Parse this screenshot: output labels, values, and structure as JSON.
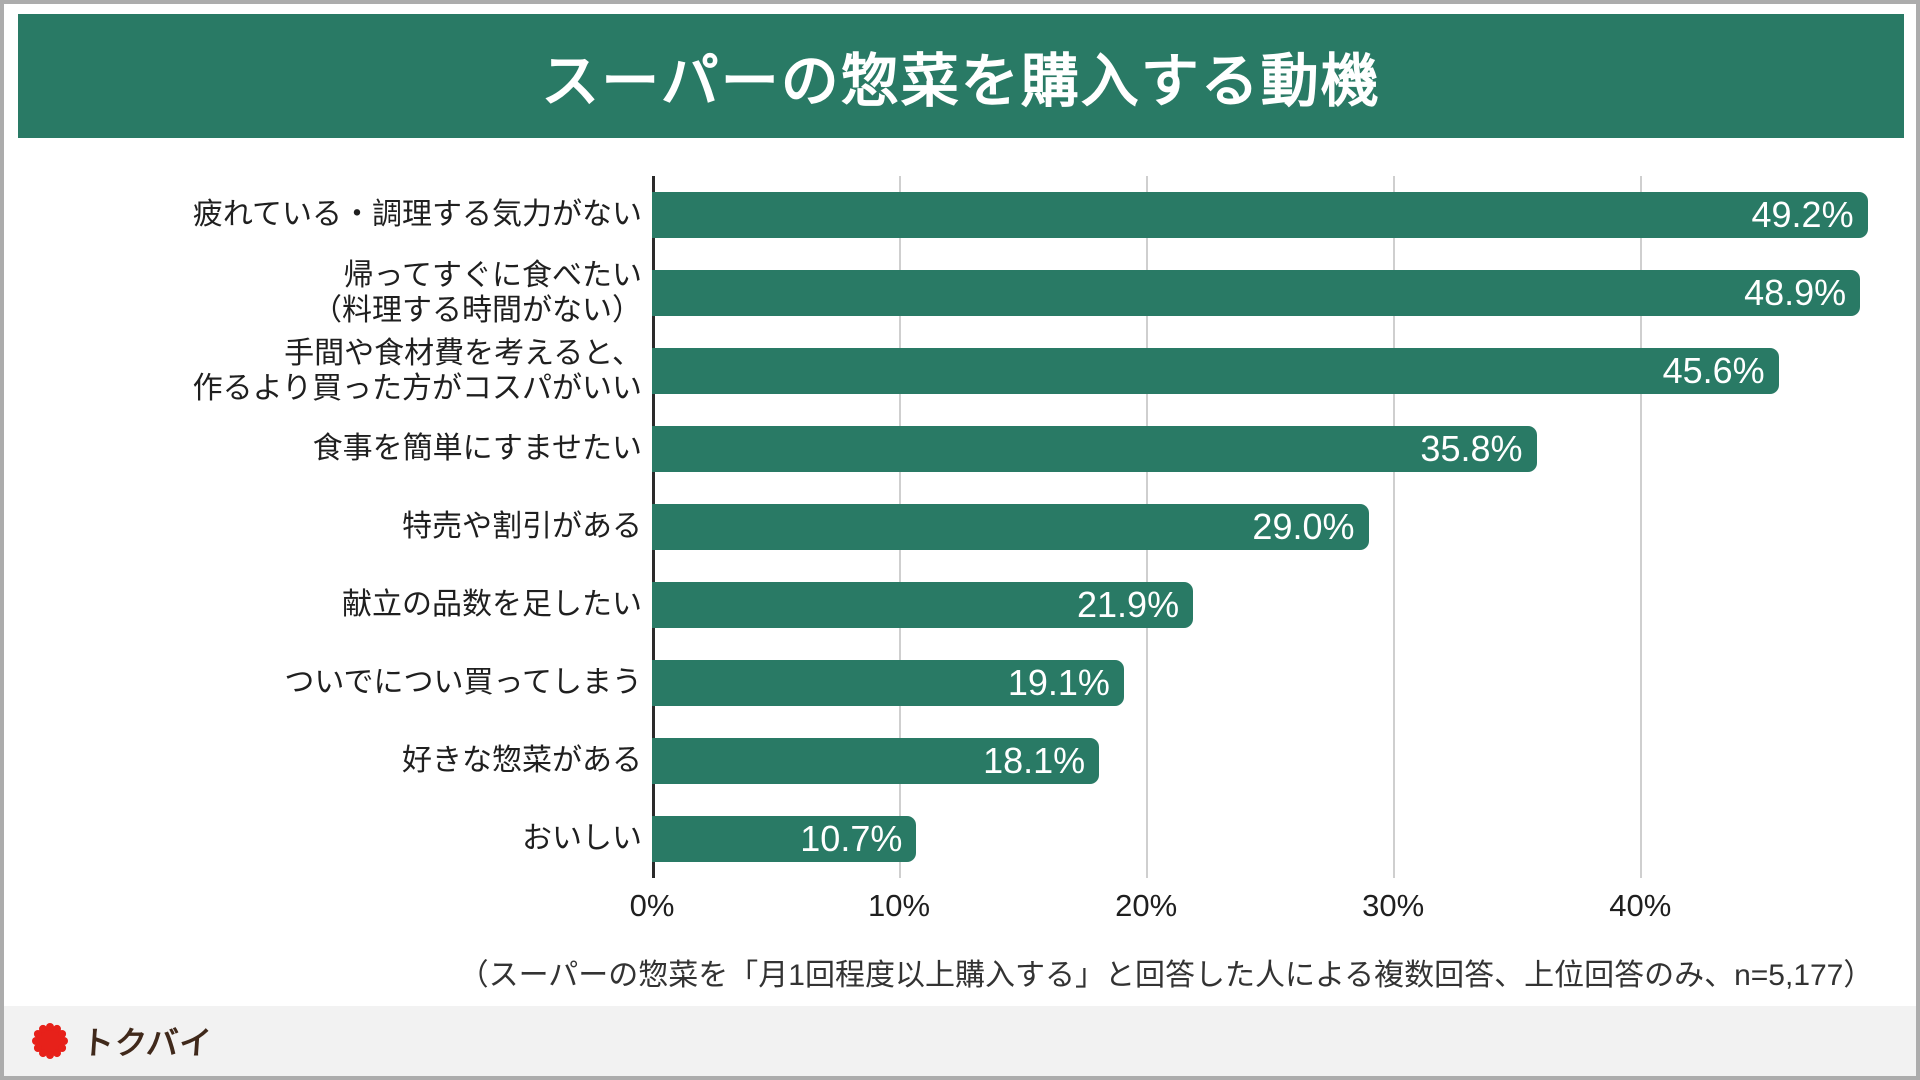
{
  "title": "スーパーの惣菜を購入する動機",
  "chart_data": {
    "type": "bar",
    "orientation": "horizontal",
    "categories": [
      "疲れている・調理する気力がない",
      "帰ってすぐに食べたい\n（料理する時間がない）",
      "手間や食材費を考えると、\n作るより買った方がコスパがいい",
      "食事を簡単にすませたい",
      "特売や割引がある",
      "献立の品数を足したい",
      "ついでについ買ってしまう",
      "好きな惣菜がある",
      "おいしい"
    ],
    "values": [
      49.2,
      48.9,
      45.6,
      35.8,
      29.0,
      21.9,
      19.1,
      18.1,
      10.7
    ],
    "value_labels": [
      "49.2%",
      "48.9%",
      "45.6%",
      "35.8%",
      "29.0%",
      "21.9%",
      "19.1%",
      "18.1%",
      "10.7%"
    ],
    "title": "スーパーの惣菜を購入する動機",
    "xlabel": "",
    "ylabel": "",
    "x_ticks": [
      0,
      10,
      20,
      30,
      40
    ],
    "x_tick_labels": [
      "0%",
      "10%",
      "20%",
      "30%",
      "40%"
    ],
    "xlim": [
      0,
      51.2
    ],
    "grid": true,
    "legend": false,
    "bar_color": "#297A65"
  },
  "footnote": "（スーパーの惣菜を「月1回程度以上購入する」と回答した人による複数回答、上位回答のみ、n=5,177）",
  "logo": {
    "text": "トクバイ",
    "icon": "red-starburst"
  },
  "colors": {
    "accent_green": "#297A65",
    "grid": "#CFCFCF",
    "axis": "#2A2A2A",
    "logo_red": "#E7211A",
    "logo_text": "#40291B",
    "footer_bg": "#F2F2F2"
  }
}
